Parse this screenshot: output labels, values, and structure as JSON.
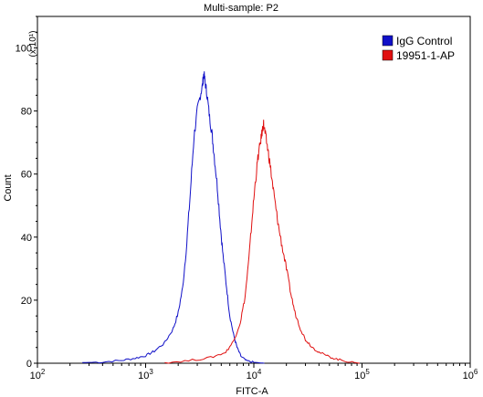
{
  "chart_data": {
    "type": "line",
    "title": "Multi-sample: P2",
    "xlabel": "FITC-A",
    "ylabel": "Count",
    "y_multiplier_label": "(x 10¹)",
    "x_scale": "log",
    "xlim": [
      100,
      1000000
    ],
    "ylim": [
      0,
      110
    ],
    "x_ticks": [
      100,
      1000,
      10000,
      100000,
      1000000
    ],
    "x_tick_labels": [
      {
        "base": "10",
        "exp": "2"
      },
      {
        "base": "10",
        "exp": "3"
      },
      {
        "base": "10",
        "exp": "4"
      },
      {
        "base": "10",
        "exp": "5"
      },
      {
        "base": "10",
        "exp": "6"
      }
    ],
    "y_ticks": [
      0,
      20,
      40,
      60,
      80,
      100
    ],
    "y_tick_labels": [
      "0",
      "20",
      "40",
      "60",
      "80",
      "100"
    ],
    "legend_position": "top-right",
    "series": [
      {
        "name": "IgG Control",
        "color": "#1010c8",
        "points": [
          [
            260,
            0.2
          ],
          [
            400,
            0.4
          ],
          [
            600,
            0.9
          ],
          [
            800,
            1.6
          ],
          [
            1000,
            2.4
          ],
          [
            1200,
            3.8
          ],
          [
            1500,
            6.5
          ],
          [
            1800,
            11
          ],
          [
            2000,
            16
          ],
          [
            2200,
            24
          ],
          [
            2400,
            38
          ],
          [
            2600,
            55
          ],
          [
            2800,
            72
          ],
          [
            3000,
            80
          ],
          [
            3200,
            85
          ],
          [
            3350,
            88
          ],
          [
            3450,
            92
          ],
          [
            3550,
            89
          ],
          [
            3700,
            85
          ],
          [
            3900,
            78
          ],
          [
            4100,
            73
          ],
          [
            4300,
            66
          ],
          [
            4600,
            56
          ],
          [
            4900,
            44
          ],
          [
            5200,
            34
          ],
          [
            5600,
            24
          ],
          [
            6000,
            15
          ],
          [
            6500,
            9
          ],
          [
            7000,
            5
          ],
          [
            7600,
            2.2
          ],
          [
            8500,
            0.8
          ],
          [
            10000,
            0.3
          ],
          [
            12500,
            0
          ]
        ]
      },
      {
        "name": "19951-1-AP",
        "color": "#e01010",
        "points": [
          [
            1500,
            0.2
          ],
          [
            2500,
            0.8
          ],
          [
            4000,
            1.8
          ],
          [
            5500,
            3.5
          ],
          [
            6500,
            7
          ],
          [
            7500,
            13
          ],
          [
            8300,
            21
          ],
          [
            9000,
            33
          ],
          [
            9700,
            47
          ],
          [
            10300,
            57
          ],
          [
            10900,
            65
          ],
          [
            11500,
            70
          ],
          [
            12000,
            74
          ],
          [
            12300,
            76
          ],
          [
            12700,
            73
          ],
          [
            13300,
            69
          ],
          [
            14000,
            64
          ],
          [
            15000,
            56
          ],
          [
            16000,
            49
          ],
          [
            17000,
            43
          ],
          [
            18500,
            36
          ],
          [
            20000,
            30
          ],
          [
            22000,
            22
          ],
          [
            24000,
            16
          ],
          [
            27000,
            11
          ],
          [
            30000,
            7.5
          ],
          [
            35000,
            5
          ],
          [
            40000,
            3.5
          ],
          [
            50000,
            2
          ],
          [
            60000,
            1.2
          ],
          [
            75000,
            0.5
          ],
          [
            95000,
            0
          ]
        ]
      }
    ]
  }
}
